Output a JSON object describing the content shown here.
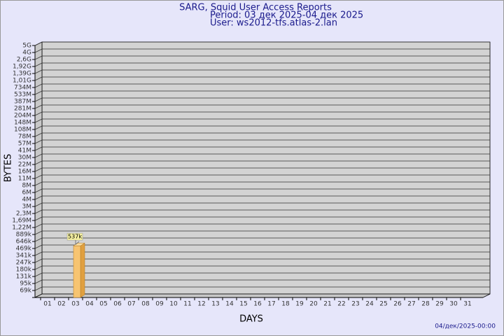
{
  "chart_data": {
    "type": "bar",
    "title": "SARG, Squid User Access Reports",
    "subtitle": "Period: 03 дек 2025-04 дек 2025",
    "user": "User: ws2012-tfs.atlas-2.lan",
    "y_label": "BYTES",
    "x_label": "DAYS",
    "footer": "04/дек/2025-00:00",
    "categories": [
      "01",
      "02",
      "03",
      "04",
      "05",
      "06",
      "07",
      "08",
      "09",
      "10",
      "11",
      "12",
      "13",
      "14",
      "15",
      "16",
      "17",
      "18",
      "19",
      "20",
      "21",
      "22",
      "23",
      "24",
      "25",
      "26",
      "27",
      "28",
      "29",
      "30",
      "31"
    ],
    "values": [
      null,
      null,
      537000,
      null,
      null,
      null,
      null,
      null,
      null,
      null,
      null,
      null,
      null,
      null,
      null,
      null,
      null,
      null,
      null,
      null,
      null,
      null,
      null,
      null,
      null,
      null,
      null,
      null,
      null,
      null,
      null
    ],
    "value_labels": [
      null,
      null,
      "537k",
      null,
      null,
      null,
      null,
      null,
      null,
      null,
      null,
      null,
      null,
      null,
      null,
      null,
      null,
      null,
      null,
      null,
      null,
      null,
      null,
      null,
      null,
      null,
      null,
      null,
      null,
      null,
      null
    ],
    "color": "#f7c471",
    "ylim": [
      0,
      5000000000
    ],
    "yticks": [
      {
        "value": 69000,
        "label": "69k"
      },
      {
        "value": 95000,
        "label": "95k"
      },
      {
        "value": 131000,
        "label": "131k"
      },
      {
        "value": 180000,
        "label": "180k"
      },
      {
        "value": 247000,
        "label": "247k"
      },
      {
        "value": 341000,
        "label": "341k"
      },
      {
        "value": 469000,
        "label": "469k"
      },
      {
        "value": 646000,
        "label": "646k"
      },
      {
        "value": 889000,
        "label": "889k"
      },
      {
        "value": 1220000,
        "label": "1,22M"
      },
      {
        "value": 1690000,
        "label": "1,69M"
      },
      {
        "value": 2300000,
        "label": "2,3M"
      },
      {
        "value": 3000000,
        "label": "3M"
      },
      {
        "value": 4000000,
        "label": "4M"
      },
      {
        "value": 6000000,
        "label": "6M"
      },
      {
        "value": 8000000,
        "label": "8M"
      },
      {
        "value": 11000000,
        "label": "11M"
      },
      {
        "value": 16000000,
        "label": "16M"
      },
      {
        "value": 22000000,
        "label": "22M"
      },
      {
        "value": 30000000,
        "label": "30M"
      },
      {
        "value": 41000000,
        "label": "41M"
      },
      {
        "value": 57000000,
        "label": "57M"
      },
      {
        "value": 78000000,
        "label": "78M"
      },
      {
        "value": 108000000,
        "label": "108M"
      },
      {
        "value": 148000000,
        "label": "148M"
      },
      {
        "value": 204000000,
        "label": "204M"
      },
      {
        "value": 281000000,
        "label": "281M"
      },
      {
        "value": 387000000,
        "label": "387M"
      },
      {
        "value": 533000000,
        "label": "533M"
      },
      {
        "value": 734000000,
        "label": "734M"
      },
      {
        "value": 1010000000,
        "label": "1,01G"
      },
      {
        "value": 1390000000,
        "label": "1,39G"
      },
      {
        "value": 1920000000,
        "label": "1,92G"
      },
      {
        "value": 2600000000,
        "label": "2,6G"
      },
      {
        "value": 4000000000,
        "label": "4G"
      },
      {
        "value": 5000000000,
        "label": "5G"
      }
    ],
    "grid": true
  }
}
